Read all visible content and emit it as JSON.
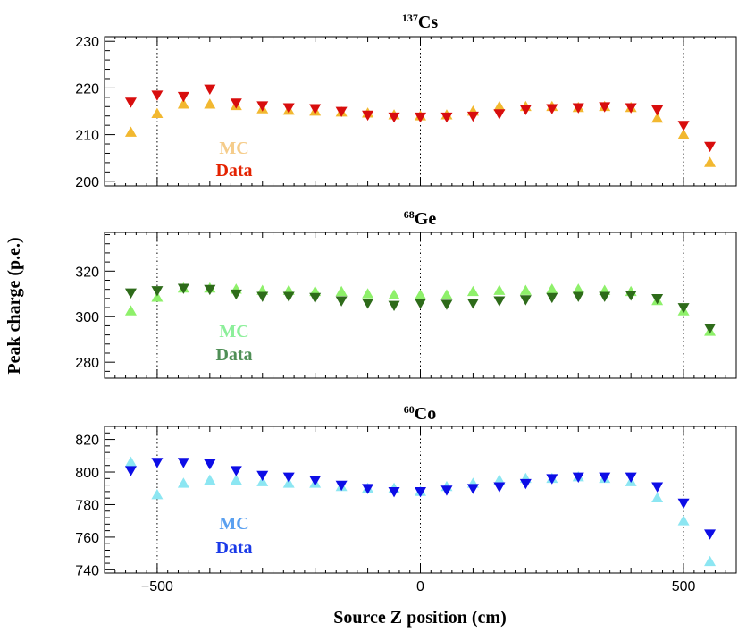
{
  "chart_data": [
    {
      "type": "scatter",
      "title": {
        "superscript": "137",
        "text": "Cs"
      },
      "ylim": [
        199,
        231
      ],
      "yticks": [
        200,
        210,
        220,
        230
      ],
      "xlim": [
        -600,
        600
      ],
      "xticks": [
        -500,
        0,
        500
      ],
      "grid": true,
      "legend_placement": "left",
      "series": [
        {
          "name": "MC",
          "marker": "up-triangle",
          "color": "#f2b830",
          "legend_color": "#f5cc8a",
          "x": [
            -550,
            -500,
            -450,
            -400,
            -350,
            -300,
            -250,
            -200,
            -150,
            -100,
            -50,
            0,
            50,
            100,
            150,
            200,
            250,
            300,
            350,
            400,
            450,
            500,
            550
          ],
          "y": [
            210.5,
            214.5,
            216.5,
            216.5,
            216.2,
            215.5,
            215.2,
            215.0,
            214.8,
            214.6,
            214.2,
            214.0,
            214.2,
            215.0,
            216.0,
            216.0,
            216.0,
            215.8,
            216.0,
            215.8,
            213.5,
            210.0,
            204.0
          ]
        },
        {
          "name": "Data",
          "marker": "down-triangle",
          "color": "#d80d0d",
          "legend_color": "#e42200",
          "x": [
            -550,
            -500,
            -450,
            -400,
            -350,
            -300,
            -250,
            -200,
            -150,
            -100,
            -50,
            0,
            50,
            100,
            150,
            200,
            250,
            300,
            350,
            400,
            450,
            500,
            550
          ],
          "y": [
            217.0,
            218.5,
            218.2,
            219.8,
            216.8,
            216.2,
            215.8,
            215.6,
            215.0,
            214.2,
            213.8,
            213.8,
            213.8,
            214.0,
            214.5,
            215.4,
            215.6,
            215.8,
            216.0,
            215.8,
            215.3,
            212.0,
            207.5
          ]
        }
      ]
    },
    {
      "type": "scatter",
      "title": {
        "superscript": "68",
        "text": "Ge"
      },
      "ylim": [
        273,
        337
      ],
      "yticks": [
        280,
        300,
        320
      ],
      "xlim": [
        -600,
        600
      ],
      "xticks": [
        -500,
        0,
        500
      ],
      "grid": true,
      "legend_placement": "left",
      "series": [
        {
          "name": "MC",
          "marker": "up-triangle",
          "color": "#8ef06a",
          "legend_color": "#8cef9a",
          "x": [
            -550,
            -500,
            -450,
            -400,
            -350,
            -300,
            -250,
            -200,
            -150,
            -100,
            -50,
            0,
            50,
            100,
            150,
            200,
            250,
            300,
            350,
            400,
            450,
            500,
            550
          ],
          "y": [
            302.5,
            308.5,
            312.5,
            312.5,
            312.0,
            311.5,
            311.5,
            311.0,
            311.0,
            310.0,
            309.5,
            309.5,
            309.5,
            311.0,
            311.5,
            311.5,
            312.0,
            312.0,
            311.5,
            311.0,
            307.0,
            302.5,
            293.5
          ]
        },
        {
          "name": "Data",
          "marker": "down-triangle",
          "color": "#2e6b1a",
          "legend_color": "#4f8f56",
          "x": [
            -550,
            -500,
            -450,
            -400,
            -350,
            -300,
            -250,
            -200,
            -150,
            -100,
            -50,
            0,
            50,
            100,
            150,
            200,
            250,
            300,
            350,
            400,
            450,
            500,
            550
          ],
          "y": [
            310.5,
            311.5,
            312.5,
            312.0,
            310.0,
            309.0,
            309.0,
            308.5,
            307.0,
            306.0,
            305.0,
            306.0,
            305.5,
            306.0,
            307.0,
            307.5,
            308.5,
            309.0,
            309.0,
            309.5,
            308.0,
            304.0,
            295.0
          ]
        }
      ]
    },
    {
      "type": "scatter",
      "title": {
        "superscript": "60",
        "text": "Co"
      },
      "ylim": [
        738,
        828
      ],
      "yticks": [
        740,
        760,
        780,
        800,
        820
      ],
      "xlim": [
        -600,
        600
      ],
      "xticks": [
        -500,
        0,
        500
      ],
      "grid": true,
      "legend_placement": "left",
      "series": [
        {
          "name": "MC",
          "marker": "up-triangle",
          "color": "#8ce6f2",
          "legend_color": "#5aa0f0",
          "x": [
            -550,
            -500,
            -450,
            -400,
            -350,
            -300,
            -250,
            -200,
            -150,
            -100,
            -50,
            0,
            50,
            100,
            150,
            200,
            250,
            300,
            350,
            400,
            450,
            500,
            550
          ],
          "y": [
            806,
            786,
            793,
            795,
            795,
            794,
            793,
            793,
            791,
            790,
            790,
            788,
            791,
            793,
            795,
            796,
            796,
            797,
            796,
            794,
            784,
            770,
            745
          ]
        },
        {
          "name": "Data",
          "marker": "down-triangle",
          "color": "#0d0de6",
          "legend_color": "#1a3ae8",
          "x": [
            -550,
            -500,
            -450,
            -400,
            -350,
            -300,
            -250,
            -200,
            -150,
            -100,
            -50,
            0,
            50,
            100,
            150,
            200,
            250,
            300,
            350,
            400,
            450,
            500,
            550
          ],
          "y": [
            801,
            806,
            806,
            805,
            801,
            798,
            797,
            795,
            792,
            790,
            788,
            788,
            789,
            790,
            791,
            793,
            796,
            797,
            797,
            797,
            791,
            781,
            762
          ]
        }
      ]
    }
  ],
  "ylabel": "Peak charge (p.e.)",
  "xlabel": "Source Z position  (cm)",
  "xtick_labels": [
    "−500",
    "0",
    "500"
  ]
}
